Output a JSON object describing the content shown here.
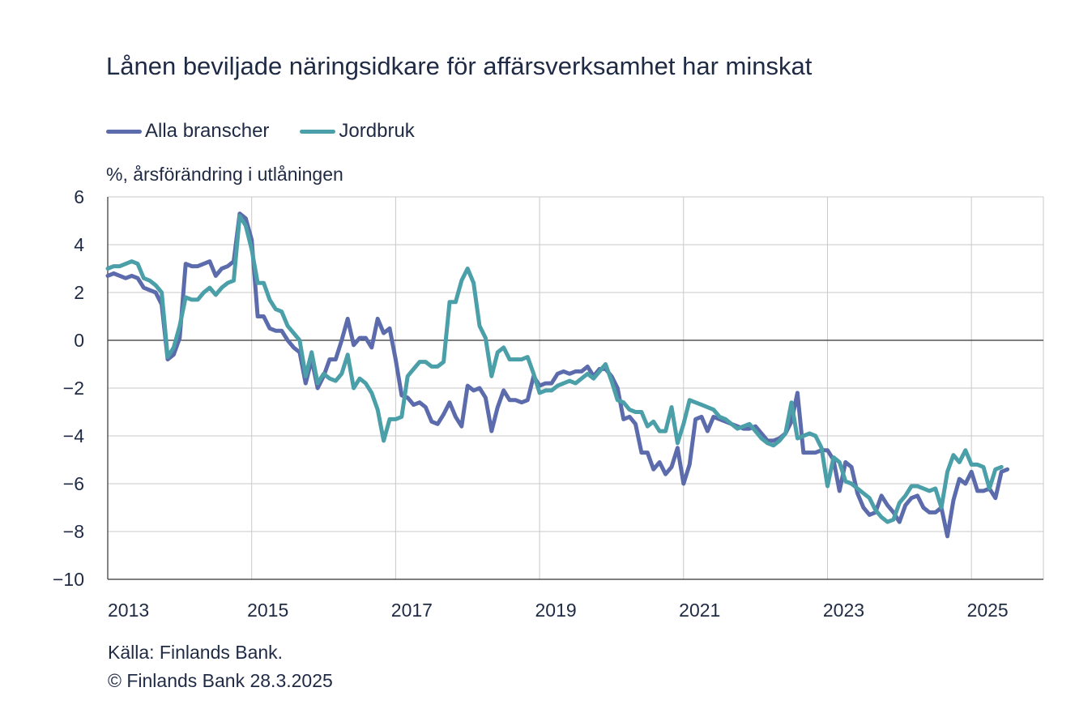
{
  "chart_data": {
    "type": "line",
    "title": "Lånen beviljade näringsidkare för affärsverksamhet har minskat",
    "ylabel": "%, årsförändring i utlåningen",
    "xlabel": "",
    "ylim": [
      -10,
      6
    ],
    "yticks": [
      "6",
      "4",
      "2",
      "0",
      "−2",
      "−4",
      "−6",
      "−8",
      "−10"
    ],
    "xlim": [
      2013,
      2026
    ],
    "xticks": [
      "2013",
      "2015",
      "2017",
      "2019",
      "2021",
      "2023",
      "2025"
    ],
    "grid": true,
    "legend_position": "top-left",
    "x_start": "2013-01",
    "x_step": "month",
    "series": [
      {
        "name": "Alla branscher",
        "color": "#5b6bab",
        "values": [
          2.7,
          2.8,
          2.7,
          2.6,
          2.7,
          2.6,
          2.2,
          2.1,
          2.0,
          1.5,
          -0.8,
          -0.6,
          0.1,
          3.2,
          3.1,
          3.1,
          3.2,
          3.3,
          2.7,
          3.0,
          3.1,
          3.3,
          5.3,
          5.1,
          4.2,
          1.0,
          1.0,
          0.5,
          0.4,
          0.4,
          0.0,
          -0.3,
          -0.5,
          -1.8,
          -0.8,
          -2.0,
          -1.5,
          -0.8,
          -0.8,
          0.0,
          0.9,
          -0.2,
          0.1,
          0.1,
          -0.3,
          0.9,
          0.3,
          0.5,
          -0.8,
          -2.3,
          -2.4,
          -2.7,
          -2.6,
          -2.8,
          -3.4,
          -3.5,
          -3.1,
          -2.6,
          -3.2,
          -3.6,
          -1.9,
          -2.1,
          -2.0,
          -2.4,
          -3.8,
          -2.8,
          -2.1,
          -2.5,
          -2.5,
          -2.6,
          -2.5,
          -1.5,
          -1.9,
          -1.8,
          -1.8,
          -1.4,
          -1.3,
          -1.4,
          -1.3,
          -1.3,
          -1.1,
          -1.5,
          -1.2,
          -1.2,
          -1.5,
          -2.0,
          -3.3,
          -3.2,
          -3.5,
          -4.7,
          -4.7,
          -5.4,
          -5.1,
          -5.6,
          -5.3,
          -4.5,
          -6.0,
          -5.2,
          -3.3,
          -3.2,
          -3.8,
          -3.2,
          -3.3,
          -3.4,
          -3.5,
          -3.6,
          -3.7,
          -3.7,
          -3.6,
          -3.9,
          -4.2,
          -4.2,
          -4.1,
          -3.9,
          -3.4,
          -2.2,
          -4.7,
          -4.7,
          -4.7,
          -4.6,
          -4.6,
          -5.0,
          -6.3,
          -5.1,
          -5.3,
          -6.4,
          -7.0,
          -7.3,
          -7.2,
          -6.5,
          -6.9,
          -7.2,
          -7.6,
          -6.9,
          -6.6,
          -6.5,
          -7.0,
          -7.2,
          -7.2,
          -7.0,
          -8.2,
          -6.7,
          -5.8,
          -6.0,
          -5.5,
          -6.3,
          -6.3,
          -6.2,
          -6.6,
          -5.5,
          -5.4
        ]
      },
      {
        "name": "Jordbruk",
        "color": "#4a9fa8",
        "values": [
          3.0,
          3.1,
          3.1,
          3.2,
          3.3,
          3.2,
          2.6,
          2.5,
          2.3,
          2.0,
          -0.7,
          -0.3,
          0.6,
          1.8,
          1.7,
          1.7,
          2.0,
          2.2,
          1.9,
          2.2,
          2.4,
          2.5,
          5.2,
          4.8,
          3.8,
          2.4,
          2.4,
          1.7,
          1.3,
          1.2,
          0.6,
          0.3,
          0.0,
          -1.5,
          -0.5,
          -1.8,
          -1.4,
          -1.6,
          -1.7,
          -1.4,
          -0.6,
          -2.0,
          -1.6,
          -1.8,
          -2.2,
          -2.9,
          -4.2,
          -3.3,
          -3.3,
          -3.2,
          -1.5,
          -1.2,
          -0.9,
          -0.9,
          -1.1,
          -1.1,
          -0.9,
          1.6,
          1.6,
          2.5,
          3.0,
          2.4,
          0.6,
          0.1,
          -1.5,
          -0.5,
          -0.3,
          -0.8,
          -0.8,
          -0.8,
          -0.7,
          -1.4,
          -2.2,
          -2.1,
          -2.1,
          -1.9,
          -1.8,
          -1.7,
          -1.8,
          -1.6,
          -1.4,
          -1.6,
          -1.3,
          -1.0,
          -1.7,
          -2.5,
          -2.6,
          -2.9,
          -3.0,
          -3.0,
          -3.6,
          -3.4,
          -3.8,
          -3.8,
          -2.8,
          -4.3,
          -3.5,
          -2.5,
          -2.6,
          -2.7,
          -2.8,
          -2.9,
          -3.2,
          -3.3,
          -3.5,
          -3.7,
          -3.6,
          -3.5,
          -3.8,
          -4.1,
          -4.3,
          -4.4,
          -4.2,
          -3.9,
          -2.6,
          -4.1,
          -4.0,
          -3.9,
          -4.0,
          -4.5,
          -6.1,
          -4.9,
          -5.1,
          -5.9,
          -6.0,
          -6.2,
          -6.4,
          -6.6,
          -7.1,
          -7.4,
          -7.6,
          -7.5,
          -6.8,
          -6.5,
          -6.1,
          -6.1,
          -6.2,
          -6.3,
          -6.2,
          -7.0,
          -5.5,
          -4.8,
          -5.1,
          -4.6,
          -5.2,
          -5.2,
          -5.3,
          -6.2,
          -5.4,
          -5.3
        ]
      }
    ]
  },
  "source": "Källa: Finlands Bank.",
  "copyright": "© Finlands Bank 28.3.2025"
}
